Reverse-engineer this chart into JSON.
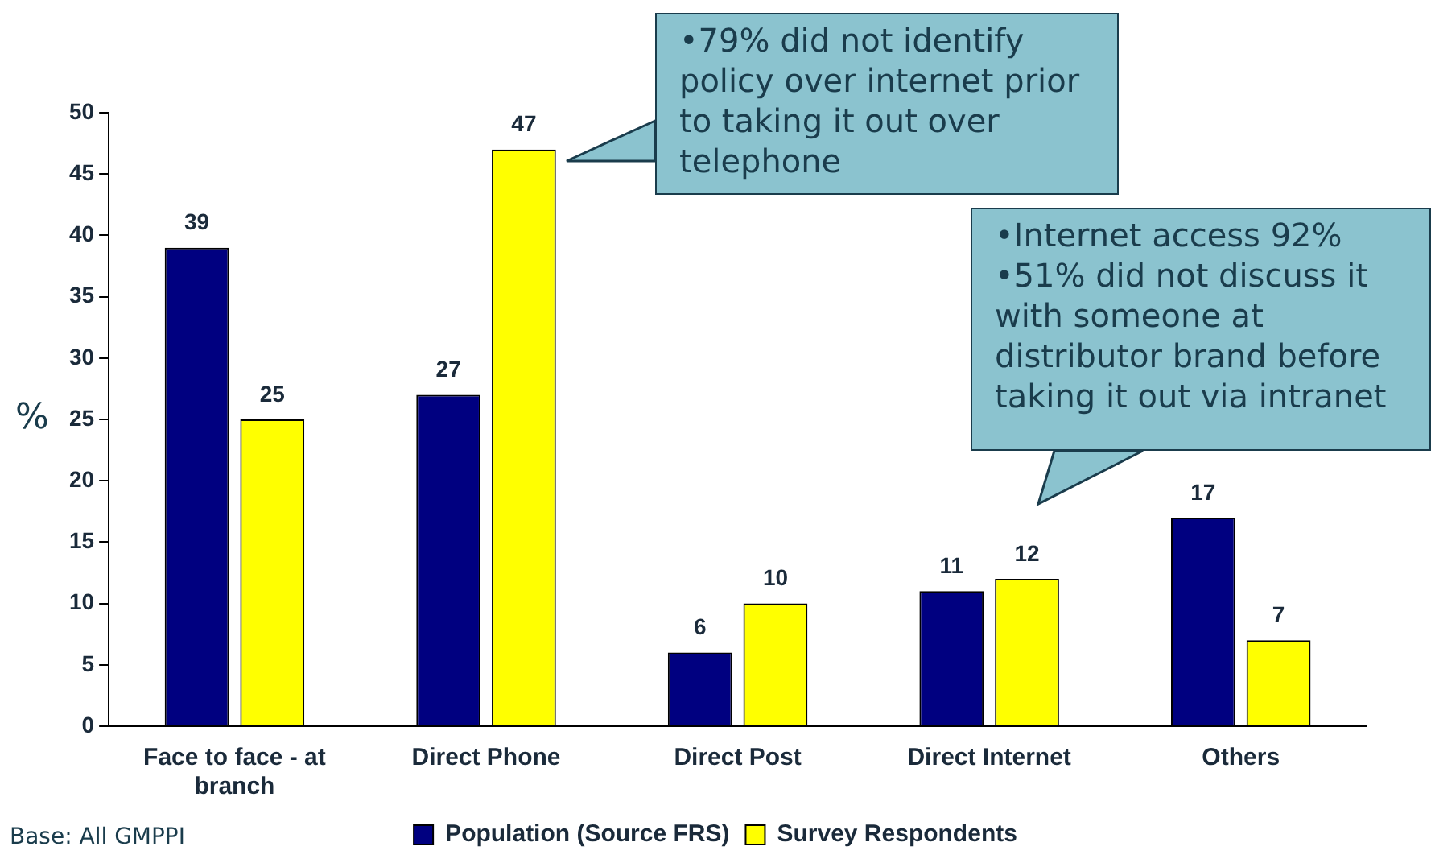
{
  "chart_data": {
    "type": "bar",
    "ylabel": "%",
    "categories": [
      "Face to face - at branch",
      "Direct Phone",
      "Direct Post",
      "Direct Internet",
      "Others"
    ],
    "series": [
      {
        "name": "Population (Source FRS)",
        "color": "#000080",
        "values": [
          39,
          27,
          6,
          11,
          17
        ]
      },
      {
        "name": "Survey Respondents",
        "color": "#ffff00",
        "values": [
          25,
          47,
          10,
          12,
          7
        ]
      }
    ],
    "ylim": [
      0,
      50
    ],
    "yticks": [
      0,
      5,
      10,
      15,
      20,
      25,
      30,
      35,
      40,
      45,
      50
    ],
    "grid": false,
    "legend": "bottom",
    "data_labels": true,
    "annotations": [
      "•79% did not identify policy over internet prior to taking it out over telephone",
      "•Internet access 92%\n•51% did not discuss it with someone at distributor brand before taking it out via intranet",
      "Base: All GMPPI"
    ]
  }
}
